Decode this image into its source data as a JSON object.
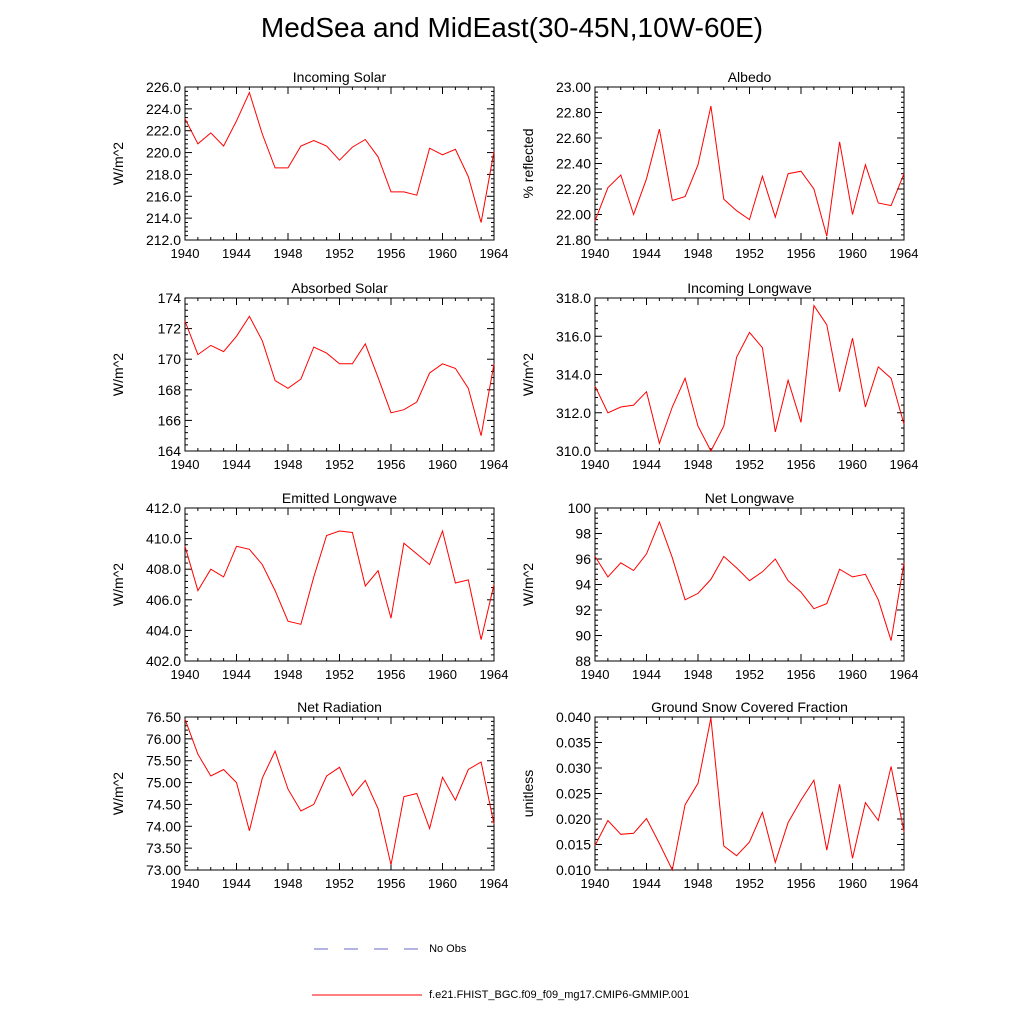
{
  "figure": {
    "title": "MedSea and MidEast(30-45N,10W-60E)",
    "line_color": "#ff0000",
    "obs_color": "#6a6ac8",
    "legend": [
      {
        "label": "No Obs",
        "style": "dashed",
        "color": "#6a6ac8"
      },
      {
        "label": "f.e21.FHIST_BGC.f09_f09_mg17.CMIP6-GMMIP.001",
        "style": "solid",
        "color": "#ff0000"
      }
    ]
  },
  "chart_data": [
    {
      "type": "line",
      "title": "Incoming Solar",
      "xlabel": "",
      "ylabel": "W/m^2",
      "xlim": [
        1940,
        1964
      ],
      "ylim": [
        212.0,
        226.0
      ],
      "xticks": [
        1940,
        1944,
        1948,
        1952,
        1956,
        1960,
        1964
      ],
      "xtick_labels": [
        "1940",
        "1944",
        "1948",
        "1952",
        "1956",
        "1960",
        "1964"
      ],
      "yticks": [
        212.0,
        214.0,
        216.0,
        218.0,
        220.0,
        222.0,
        224.0,
        226.0
      ],
      "ytick_labels": [
        "212.0",
        "214.0",
        "216.0",
        "218.0",
        "220.0",
        "222.0",
        "224.0",
        "226.0"
      ],
      "x": [
        1940,
        1941,
        1942,
        1943,
        1944,
        1945,
        1946,
        1947,
        1948,
        1949,
        1950,
        1951,
        1952,
        1953,
        1954,
        1955,
        1956,
        1957,
        1958,
        1959,
        1960,
        1961,
        1962,
        1963,
        1964
      ],
      "series": [
        {
          "name": "f.e21.FHIST_BGC.f09_f09_mg17.CMIP6-GMMIP.001",
          "values": [
            223.1,
            220.8,
            221.8,
            220.6,
            222.9,
            225.5,
            221.7,
            218.6,
            218.6,
            220.6,
            221.1,
            220.6,
            219.3,
            220.5,
            221.2,
            219.6,
            216.4,
            216.4,
            216.1,
            220.4,
            219.8,
            220.3,
            217.8,
            213.6,
            220.1
          ]
        }
      ]
    },
    {
      "type": "line",
      "title": "Albedo",
      "xlabel": "",
      "ylabel": "% reflected",
      "xlim": [
        1940,
        1964
      ],
      "ylim": [
        21.8,
        23.0
      ],
      "xticks": [
        1940,
        1944,
        1948,
        1952,
        1956,
        1960,
        1964
      ],
      "xtick_labels": [
        "1940",
        "1944",
        "1948",
        "1952",
        "1956",
        "1960",
        "1964"
      ],
      "yticks": [
        21.8,
        22.0,
        22.2,
        22.4,
        22.6,
        22.8,
        23.0
      ],
      "ytick_labels": [
        "21.80",
        "22.00",
        "22.20",
        "22.40",
        "22.60",
        "22.80",
        "23.00"
      ],
      "x": [
        1940,
        1941,
        1942,
        1943,
        1944,
        1945,
        1946,
        1947,
        1948,
        1949,
        1950,
        1951,
        1952,
        1953,
        1954,
        1955,
        1956,
        1957,
        1958,
        1959,
        1960,
        1961,
        1962,
        1963,
        1964
      ],
      "series": [
        {
          "name": "f.e21.FHIST_BGC.f09_f09_mg17.CMIP6-GMMIP.001",
          "values": [
            21.95,
            22.21,
            22.31,
            22.0,
            22.28,
            22.67,
            22.11,
            22.14,
            22.39,
            22.85,
            22.12,
            22.03,
            21.96,
            22.3,
            21.98,
            22.32,
            22.34,
            22.2,
            21.83,
            22.57,
            22.0,
            22.39,
            22.09,
            22.07,
            22.32
          ]
        }
      ]
    },
    {
      "type": "line",
      "title": "Absorbed Solar",
      "xlabel": "",
      "ylabel": "W/m^2",
      "xlim": [
        1940,
        1964
      ],
      "ylim": [
        164,
        174
      ],
      "xticks": [
        1940,
        1944,
        1948,
        1952,
        1956,
        1960,
        1964
      ],
      "xtick_labels": [
        "1940",
        "1944",
        "1948",
        "1952",
        "1956",
        "1960",
        "1964"
      ],
      "yticks": [
        164,
        166,
        168,
        170,
        172,
        174
      ],
      "ytick_labels": [
        "164",
        "166",
        "168",
        "170",
        "172",
        "174"
      ],
      "x": [
        1940,
        1941,
        1942,
        1943,
        1944,
        1945,
        1946,
        1947,
        1948,
        1949,
        1950,
        1951,
        1952,
        1953,
        1954,
        1955,
        1956,
        1957,
        1958,
        1959,
        1960,
        1961,
        1962,
        1963,
        1964
      ],
      "series": [
        {
          "name": "f.e21.FHIST_BGC.f09_f09_mg17.CMIP6-GMMIP.001",
          "values": [
            172.5,
            170.3,
            170.9,
            170.5,
            171.5,
            172.8,
            171.2,
            168.6,
            168.1,
            168.7,
            170.8,
            170.4,
            169.7,
            169.7,
            171.0,
            168.8,
            166.5,
            166.7,
            167.2,
            169.1,
            169.7,
            169.4,
            168.1,
            165.0,
            169.7
          ]
        }
      ]
    },
    {
      "type": "line",
      "title": "Incoming Longwave",
      "xlabel": "",
      "ylabel": "W/m^2",
      "xlim": [
        1940,
        1964
      ],
      "ylim": [
        310.0,
        318.0
      ],
      "xticks": [
        1940,
        1944,
        1948,
        1952,
        1956,
        1960,
        1964
      ],
      "xtick_labels": [
        "1940",
        "1944",
        "1948",
        "1952",
        "1956",
        "1960",
        "1964"
      ],
      "yticks": [
        310.0,
        312.0,
        314.0,
        316.0,
        318.0
      ],
      "ytick_labels": [
        "310.0",
        "312.0",
        "314.0",
        "316.0",
        "318.0"
      ],
      "x": [
        1940,
        1941,
        1942,
        1943,
        1944,
        1945,
        1946,
        1947,
        1948,
        1949,
        1950,
        1951,
        1952,
        1953,
        1954,
        1955,
        1956,
        1957,
        1958,
        1959,
        1960,
        1961,
        1962,
        1963,
        1964
      ],
      "series": [
        {
          "name": "f.e21.FHIST_BGC.f09_f09_mg17.CMIP6-GMMIP.001",
          "values": [
            313.4,
            312.0,
            312.3,
            312.4,
            313.1,
            310.4,
            312.3,
            313.8,
            311.3,
            310.0,
            311.3,
            314.9,
            316.2,
            315.4,
            311.0,
            313.7,
            311.5,
            317.6,
            316.6,
            313.1,
            315.9,
            312.3,
            314.4,
            313.8,
            311.4
          ]
        }
      ]
    },
    {
      "type": "line",
      "title": "Emitted Longwave",
      "xlabel": "",
      "ylabel": "W/m^2",
      "xlim": [
        1940,
        1964
      ],
      "ylim": [
        402.0,
        412.0
      ],
      "xticks": [
        1940,
        1944,
        1948,
        1952,
        1956,
        1960,
        1964
      ],
      "xtick_labels": [
        "1940",
        "1944",
        "1948",
        "1952",
        "1956",
        "1960",
        "1964"
      ],
      "yticks": [
        402.0,
        404.0,
        406.0,
        408.0,
        410.0,
        412.0
      ],
      "ytick_labels": [
        "402.0",
        "404.0",
        "406.0",
        "408.0",
        "410.0",
        "412.0"
      ],
      "x": [
        1940,
        1941,
        1942,
        1943,
        1944,
        1945,
        1946,
        1947,
        1948,
        1949,
        1950,
        1951,
        1952,
        1953,
        1954,
        1955,
        1956,
        1957,
        1958,
        1959,
        1960,
        1961,
        1962,
        1963,
        1964
      ],
      "series": [
        {
          "name": "f.e21.FHIST_BGC.f09_f09_mg17.CMIP6-GMMIP.001",
          "values": [
            409.5,
            406.6,
            408.0,
            407.5,
            409.5,
            409.3,
            408.3,
            406.6,
            404.6,
            404.4,
            407.5,
            410.2,
            410.5,
            410.4,
            406.9,
            407.9,
            404.8,
            409.7,
            409.0,
            408.3,
            410.5,
            407.1,
            407.3,
            403.4,
            407.0
          ]
        }
      ]
    },
    {
      "type": "line",
      "title": "Net Longwave",
      "xlabel": "",
      "ylabel": "W/m^2",
      "xlim": [
        1940,
        1964
      ],
      "ylim": [
        88,
        100
      ],
      "xticks": [
        1940,
        1944,
        1948,
        1952,
        1956,
        1960,
        1964
      ],
      "xtick_labels": [
        "1940",
        "1944",
        "1948",
        "1952",
        "1956",
        "1960",
        "1964"
      ],
      "yticks": [
        88,
        90,
        92,
        94,
        96,
        98,
        100
      ],
      "ytick_labels": [
        "88",
        "90",
        "92",
        "94",
        "96",
        "98",
        "100"
      ],
      "x": [
        1940,
        1941,
        1942,
        1943,
        1944,
        1945,
        1946,
        1947,
        1948,
        1949,
        1950,
        1951,
        1952,
        1953,
        1954,
        1955,
        1956,
        1957,
        1958,
        1959,
        1960,
        1961,
        1962,
        1963,
        1964
      ],
      "series": [
        {
          "name": "f.e21.FHIST_BGC.f09_f09_mg17.CMIP6-GMMIP.001",
          "values": [
            96.2,
            94.6,
            95.7,
            95.1,
            96.4,
            98.9,
            96.1,
            92.8,
            93.3,
            94.4,
            96.2,
            95.3,
            94.3,
            95.0,
            96.0,
            94.3,
            93.4,
            92.1,
            92.5,
            95.2,
            94.6,
            94.8,
            92.8,
            89.6,
            95.7
          ]
        }
      ]
    },
    {
      "type": "line",
      "title": "Net Radiation",
      "xlabel": "",
      "ylabel": "W/m^2",
      "xlim": [
        1940,
        1964
      ],
      "ylim": [
        73.0,
        76.5
      ],
      "xticks": [
        1940,
        1944,
        1948,
        1952,
        1956,
        1960,
        1964
      ],
      "xtick_labels": [
        "1940",
        "1944",
        "1948",
        "1952",
        "1956",
        "1960",
        "1964"
      ],
      "yticks": [
        73.0,
        73.5,
        74.0,
        74.5,
        75.0,
        75.5,
        76.0,
        76.5
      ],
      "ytick_labels": [
        "73.00",
        "73.50",
        "74.00",
        "74.50",
        "75.00",
        "75.50",
        "76.00",
        "76.50"
      ],
      "x": [
        1940,
        1941,
        1942,
        1943,
        1944,
        1945,
        1946,
        1947,
        1948,
        1949,
        1950,
        1951,
        1952,
        1953,
        1954,
        1955,
        1956,
        1957,
        1958,
        1959,
        1960,
        1961,
        1962,
        1963,
        1964
      ],
      "series": [
        {
          "name": "f.e21.FHIST_BGC.f09_f09_mg17.CMIP6-GMMIP.001",
          "values": [
            76.45,
            75.65,
            75.15,
            75.3,
            75.0,
            73.9,
            75.1,
            75.72,
            74.85,
            74.35,
            74.5,
            75.15,
            75.35,
            74.7,
            75.05,
            74.4,
            73.12,
            74.68,
            74.75,
            73.95,
            75.12,
            74.6,
            75.3,
            75.47,
            74.05
          ]
        }
      ]
    },
    {
      "type": "line",
      "title": "Ground Snow Covered Fraction",
      "xlabel": "",
      "ylabel": "unitless",
      "xlim": [
        1940,
        1964
      ],
      "ylim": [
        0.01,
        0.04
      ],
      "xticks": [
        1940,
        1944,
        1948,
        1952,
        1956,
        1960,
        1964
      ],
      "xtick_labels": [
        "1940",
        "1944",
        "1948",
        "1952",
        "1956",
        "1960",
        "1964"
      ],
      "yticks": [
        0.01,
        0.015,
        0.02,
        0.025,
        0.03,
        0.035,
        0.04
      ],
      "ytick_labels": [
        "0.010",
        "0.015",
        "0.020",
        "0.025",
        "0.030",
        "0.035",
        "0.040"
      ],
      "x": [
        1940,
        1941,
        1942,
        1943,
        1944,
        1945,
        1946,
        1947,
        1948,
        1949,
        1950,
        1951,
        1952,
        1953,
        1954,
        1955,
        1956,
        1957,
        1958,
        1959,
        1960,
        1961,
        1962,
        1963,
        1964
      ],
      "series": [
        {
          "name": "f.e21.FHIST_BGC.f09_f09_mg17.CMIP6-GMMIP.001",
          "values": [
            0.0148,
            0.0197,
            0.017,
            0.0172,
            0.0201,
            0.0152,
            0.01,
            0.0228,
            0.027,
            0.0398,
            0.0147,
            0.0128,
            0.0155,
            0.0213,
            0.0115,
            0.0193,
            0.0237,
            0.0276,
            0.0139,
            0.0268,
            0.0123,
            0.0232,
            0.0197,
            0.0303,
            0.0175
          ]
        }
      ]
    }
  ]
}
